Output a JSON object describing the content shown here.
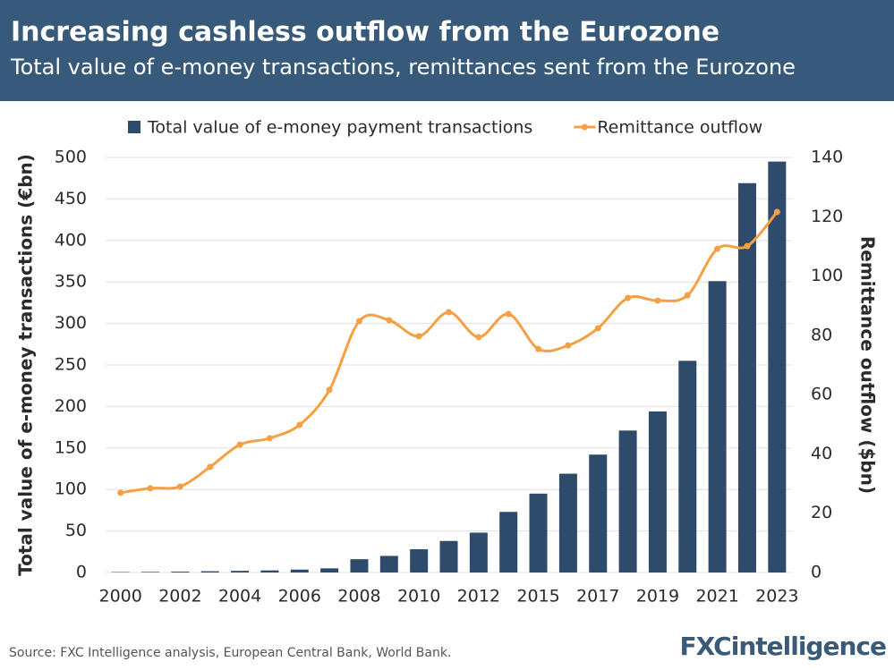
{
  "chart_data": {
    "type": "bar",
    "title": "Increasing cashless outflow from the Eurozone",
    "subtitle": "Total value of e-money transactions, remittances sent from the Eurozone",
    "categories": [
      "2000",
      null,
      "2002",
      null,
      "2004",
      null,
      "2006",
      null,
      "2008",
      null,
      "2010",
      null,
      "2012",
      null,
      "2015",
      null,
      "2017",
      null,
      "2019",
      null,
      "2021",
      null,
      "2023"
    ],
    "series": [
      {
        "name": "Total value of e-money payment transactions",
        "type": "bar",
        "color": "#2f4b6b",
        "values": [
          0.5,
          0.7,
          1,
          1.5,
          2,
          2.5,
          3.5,
          5,
          16,
          20,
          28,
          38,
          48,
          73,
          95,
          119,
          142,
          171,
          194,
          255,
          351,
          469,
          495
        ]
      },
      {
        "name": "Remittance outflow",
        "type": "line",
        "axis": "y2",
        "color": "#f5a043",
        "values": [
          26.9,
          28.4,
          29,
          35.6,
          43.1,
          45.3,
          49.8,
          61.6,
          84.8,
          85.1,
          79.7,
          87.8,
          79.4,
          87.2,
          75.4,
          76.6,
          82.4,
          92.6,
          91.7,
          93.5,
          109.2,
          110.1,
          121.6
        ]
      }
    ],
    "ylabel": "Total value of e-money transactions (€bn)",
    "y2label": "Remittance outflow ($bn)",
    "ylim": [
      0,
      500
    ],
    "yticks": [
      0,
      50,
      100,
      150,
      200,
      250,
      300,
      350,
      400,
      450,
      500
    ],
    "y2lim": [
      0,
      140
    ],
    "y2ticks": [
      0,
      20,
      40,
      60,
      80,
      100,
      120,
      140
    ],
    "grid": true,
    "legend": "top",
    "source": "Source: FXC Intelligence analysis, European Central Bank, World Bank.",
    "logo": "FXCintelligence"
  }
}
